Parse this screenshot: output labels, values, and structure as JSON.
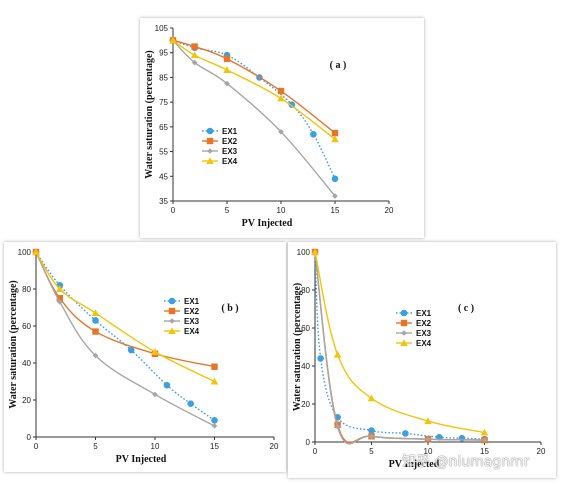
{
  "watermark": "知乎 @niumagnmr",
  "colors": {
    "EX1": "#3d9ee0",
    "EX2": "#e87428",
    "EX3": "#a6a6a6",
    "EX4": "#f2c40c"
  },
  "chart_data": [
    {
      "type": "line",
      "panel_label": "( a )",
      "xlabel": "PV Injected",
      "ylabel": "Water saturation (percentage)",
      "xlim": [
        0,
        20
      ],
      "ylim": [
        35,
        105
      ],
      "xticks": [
        0,
        5,
        10,
        15,
        20
      ],
      "yticks": [
        35,
        45,
        55,
        65,
        75,
        85,
        95,
        105
      ],
      "legend_position": "left",
      "series": [
        {
          "name": "EX1",
          "marker": "circle",
          "dash": "dotted",
          "x": [
            0,
            2,
            5,
            8,
            11,
            13,
            15
          ],
          "y": [
            100,
            97,
            94,
            85,
            74,
            62,
            44
          ]
        },
        {
          "name": "EX2",
          "marker": "square",
          "dash": "solid",
          "x": [
            0,
            2,
            5,
            10,
            15
          ],
          "y": [
            100,
            97.5,
            92.5,
            79.5,
            62.5
          ]
        },
        {
          "name": "EX3",
          "marker": "diamond",
          "dash": "solid",
          "x": [
            0,
            2,
            5,
            10,
            15
          ],
          "y": [
            100,
            91,
            82.5,
            63,
            37
          ]
        },
        {
          "name": "EX4",
          "marker": "triangle",
          "dash": "solid",
          "x": [
            0,
            2,
            5,
            10,
            15
          ],
          "y": [
            100,
            94,
            88,
            76.5,
            60
          ]
        }
      ]
    },
    {
      "type": "line",
      "panel_label": "( b )",
      "xlabel": "PV Injected",
      "ylabel": "Water saturation (percentage)",
      "xlim": [
        0,
        20
      ],
      "ylim": [
        0,
        100
      ],
      "xticks": [
        0,
        5,
        10,
        15,
        20
      ],
      "yticks": [
        0,
        20,
        40,
        60,
        80,
        100
      ],
      "legend_position": "top-right",
      "series": [
        {
          "name": "EX1",
          "marker": "circle",
          "dash": "dotted",
          "x": [
            0,
            2,
            5,
            8,
            11,
            13,
            15
          ],
          "y": [
            100,
            82,
            63,
            47,
            28,
            18,
            9
          ]
        },
        {
          "name": "EX2",
          "marker": "square",
          "dash": "solid",
          "x": [
            0,
            2,
            5,
            10,
            15
          ],
          "y": [
            100,
            75,
            57,
            45,
            38
          ]
        },
        {
          "name": "EX3",
          "marker": "diamond",
          "dash": "solid",
          "x": [
            0,
            2,
            5,
            10,
            15
          ],
          "y": [
            100,
            73,
            44,
            23,
            6
          ]
        },
        {
          "name": "EX4",
          "marker": "triangle",
          "dash": "solid",
          "x": [
            0,
            2,
            5,
            10,
            15
          ],
          "y": [
            100,
            80,
            67,
            46,
            30
          ]
        }
      ]
    },
    {
      "type": "line",
      "panel_label": "( c )",
      "xlabel": "PV Injected",
      "ylabel": "Water saturation (percentage)",
      "xlim": [
        0,
        20
      ],
      "ylim": [
        0,
        100
      ],
      "xticks": [
        0,
        5,
        10,
        15,
        20
      ],
      "yticks": [
        0,
        20,
        40,
        60,
        80,
        100
      ],
      "legend_position": "top-left",
      "series": [
        {
          "name": "EX1",
          "marker": "circle",
          "dash": "dotted",
          "x": [
            0,
            0.5,
            2,
            5,
            8,
            11,
            13,
            15
          ],
          "y": [
            100,
            44,
            13,
            6,
            4.5,
            2.5,
            2,
            1.5
          ]
        },
        {
          "name": "EX2",
          "marker": "square",
          "dash": "solid",
          "x": [
            0,
            2,
            5,
            10,
            15
          ],
          "y": [
            100,
            9,
            3,
            1.5,
            1
          ]
        },
        {
          "name": "EX3",
          "marker": "diamond",
          "dash": "solid",
          "x": [
            0,
            2,
            5,
            10,
            15
          ],
          "y": [
            100,
            8,
            3,
            1.5,
            1
          ]
        },
        {
          "name": "EX4",
          "marker": "triangle",
          "dash": "solid",
          "x": [
            0,
            2,
            5,
            10,
            15
          ],
          "y": [
            100,
            46,
            23,
            11,
            5
          ]
        }
      ]
    }
  ]
}
